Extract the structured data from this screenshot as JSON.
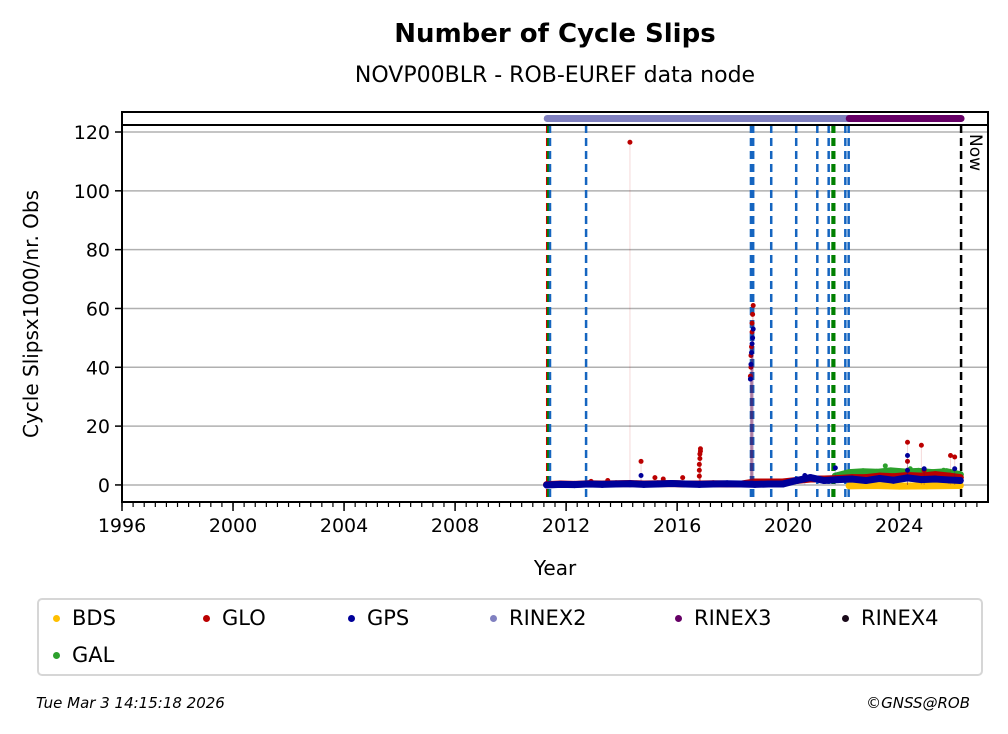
{
  "chart_data": {
    "type": "scatter",
    "title": "Number of Cycle Slips",
    "subtitle": "NOVP00BLR - ROB-EUREF data node",
    "xlabel": "Year",
    "ylabel": "Cycle Slipsx1000/nr. Obs",
    "xlim": [
      1996,
      2027.2
    ],
    "ylim": [
      -5.8,
      126.8
    ],
    "xticks": [
      1996,
      2000,
      2004,
      2008,
      2012,
      2016,
      2020,
      2024
    ],
    "yticks": [
      0,
      20,
      40,
      60,
      80,
      100,
      120
    ],
    "grid": "horizontal",
    "now_label": "Now",
    "now_year": 2026.23,
    "event_lines": [
      {
        "year": 2011.32,
        "color": "#cc0000"
      },
      {
        "year": 2011.36,
        "color": "#008000"
      },
      {
        "year": 2011.42,
        "color": "#1565c0"
      },
      {
        "year": 2012.72,
        "color": "#1565c0"
      },
      {
        "year": 2018.66,
        "color": "#1565c0"
      },
      {
        "year": 2018.74,
        "color": "#1565c0"
      },
      {
        "year": 2019.39,
        "color": "#1565c0"
      },
      {
        "year": 2020.29,
        "color": "#1565c0"
      },
      {
        "year": 2021.05,
        "color": "#1565c0"
      },
      {
        "year": 2021.46,
        "color": "#1565c0"
      },
      {
        "year": 2021.6,
        "color": "#008000"
      },
      {
        "year": 2021.66,
        "color": "#008000"
      },
      {
        "year": 2022.06,
        "color": "#1565c0"
      },
      {
        "year": 2022.18,
        "color": "#1565c0"
      }
    ],
    "rinex_bars": [
      {
        "name": "RINEX2",
        "from": 2011.32,
        "to": 2022.2,
        "color": "#8080c0"
      },
      {
        "name": "RINEX3",
        "from": 2022.2,
        "to": 2026.23,
        "color": "#660066"
      }
    ],
    "rinex_bar_level": 124.6,
    "series": [
      {
        "name": "GAL",
        "color": "#2ca02c",
        "x": [
          2021.7,
          2022.2,
          2022.7,
          2023.2,
          2023.7,
          2024.2,
          2024.7,
          2025.2,
          2025.7,
          2026.2
        ],
        "y": [
          3.0,
          4.2,
          4.5,
          4.3,
          4.8,
          4.4,
          4.6,
          4.2,
          4.5,
          3.5
        ],
        "outliers": [
          [
            2023.5,
            6.5
          ],
          [
            2024.4,
            5.5
          ],
          [
            2025.6,
            5.0
          ]
        ]
      },
      {
        "name": "BDS",
        "color": "#ffbf00",
        "x": [
          2022.2,
          2023.0,
          2024.0,
          2025.0,
          2026.2
        ],
        "y": [
          -0.3,
          -0.2,
          -0.4,
          -0.3,
          -0.2
        ],
        "outliers": []
      },
      {
        "name": "GLO",
        "color": "#bb0000",
        "x": [
          2011.3,
          2011.8,
          2012.3,
          2012.8,
          2013.3,
          2013.8,
          2014.3,
          2014.8,
          2015.3,
          2015.8,
          2016.3,
          2016.8,
          2017.3,
          2017.8,
          2018.3,
          2018.8,
          2019.3,
          2019.8,
          2020.3,
          2020.8,
          2021.3,
          2021.8,
          2022.3,
          2022.8,
          2023.3,
          2023.8,
          2024.3,
          2024.8,
          2025.3,
          2025.8,
          2026.2
        ],
        "y": [
          0.1,
          0.3,
          0.2,
          0.4,
          0.3,
          0.4,
          0.5,
          0.3,
          0.4,
          0.5,
          0.3,
          0.3,
          0.4,
          0.3,
          0.3,
          1.0,
          1.0,
          1.0,
          1.5,
          2.0,
          2.0,
          2.2,
          2.5,
          2.5,
          3.0,
          2.8,
          3.2,
          3.0,
          3.5,
          3.0,
          2.5
        ],
        "outliers": [
          [
            2012.9,
            1.2
          ],
          [
            2013.5,
            1.5
          ],
          [
            2014.3,
            116.5
          ],
          [
            2014.7,
            8.0
          ],
          [
            2015.2,
            2.5
          ],
          [
            2015.5,
            2.0
          ],
          [
            2016.2,
            2.5
          ],
          [
            2016.8,
            3
          ],
          [
            2016.8,
            5
          ],
          [
            2016.8,
            7
          ],
          [
            2016.82,
            9
          ],
          [
            2016.82,
            10.5
          ],
          [
            2016.84,
            11.5
          ],
          [
            2016.84,
            12.3
          ],
          [
            2018.64,
            37
          ],
          [
            2018.66,
            40
          ],
          [
            2018.66,
            44
          ],
          [
            2018.68,
            47
          ],
          [
            2018.7,
            52
          ],
          [
            2018.7,
            55
          ],
          [
            2018.72,
            58
          ],
          [
            2018.74,
            61
          ],
          [
            2024.3,
            14.5
          ],
          [
            2024.3,
            8.0
          ],
          [
            2024.8,
            13.5
          ],
          [
            2024.9,
            5.0
          ],
          [
            2025.85,
            10.0
          ],
          [
            2026.0,
            9.5
          ]
        ]
      },
      {
        "name": "GPS",
        "color": "#000099",
        "x": [
          2011.3,
          2011.8,
          2012.3,
          2012.8,
          2013.3,
          2013.8,
          2014.3,
          2014.8,
          2015.3,
          2015.8,
          2016.3,
          2016.8,
          2017.3,
          2017.8,
          2018.3,
          2018.8,
          2019.3,
          2019.8,
          2020.3,
          2020.8,
          2021.3,
          2021.8,
          2022.3,
          2022.8,
          2023.3,
          2023.8,
          2024.3,
          2024.8,
          2025.3,
          2025.8,
          2026.2
        ],
        "y": [
          0.0,
          0.2,
          0.1,
          0.3,
          0.2,
          0.3,
          0.4,
          0.2,
          0.3,
          0.5,
          0.3,
          0.2,
          0.3,
          0.4,
          0.3,
          0.2,
          0.3,
          0.3,
          1.5,
          2.5,
          1.5,
          1.8,
          2.0,
          1.5,
          2.2,
          1.6,
          2.4,
          1.8,
          2.0,
          1.7,
          1.5
        ],
        "outliers": [
          [
            2014.7,
            3.2
          ],
          [
            2018.64,
            36
          ],
          [
            2018.66,
            41
          ],
          [
            2018.68,
            45
          ],
          [
            2018.7,
            48
          ],
          [
            2018.72,
            50
          ],
          [
            2018.74,
            53
          ],
          [
            2020.6,
            3.2
          ],
          [
            2021.7,
            5.8
          ],
          [
            2024.3,
            10.0
          ],
          [
            2024.3,
            5.0
          ],
          [
            2024.9,
            5.5
          ],
          [
            2026.0,
            5.5
          ]
        ]
      }
    ]
  },
  "legend": {
    "items": [
      {
        "label": "BDS",
        "color": "#ffbf00"
      },
      {
        "label": "GLO",
        "color": "#bb0000"
      },
      {
        "label": "GPS",
        "color": "#000099"
      },
      {
        "label": "RINEX2",
        "color": "#8080c0"
      },
      {
        "label": "RINEX3",
        "color": "#660066"
      },
      {
        "label": "RINEX4",
        "color": "#1a0a1a"
      },
      {
        "label": "GAL",
        "color": "#2ca02c"
      }
    ]
  },
  "footer": {
    "timestamp": "Tue Mar  3 14:15:18 2026",
    "copyright": "©GNSS@ROB"
  }
}
